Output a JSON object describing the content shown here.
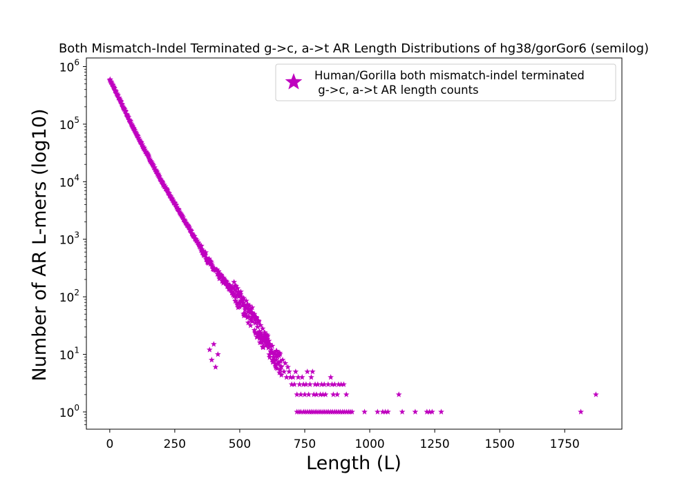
{
  "chart_data": {
    "type": "scatter",
    "title": "Both Mismatch-Indel Terminated g->c, a->t AR Length Distributions of hg38/gorGor6 (semilog)",
    "xlabel": "Length (L)",
    "ylabel": "Number of AR L-mers (log10)",
    "xlim": [
      -90,
      1970
    ],
    "ylim_log10": [
      -0.3,
      6.15
    ],
    "y_scale": "log",
    "xticks": [
      0,
      250,
      500,
      750,
      1000,
      1250,
      1500,
      1750
    ],
    "xtick_labels": [
      "0",
      "250",
      "500",
      "750",
      "1000",
      "1250",
      "1500",
      "1750"
    ],
    "yticks": [
      1,
      10,
      100,
      1000,
      10000,
      100000,
      1000000
    ],
    "ytick_labels": [
      {
        "base": "10",
        "exp": "0"
      },
      {
        "base": "10",
        "exp": "1"
      },
      {
        "base": "10",
        "exp": "2"
      },
      {
        "base": "10",
        "exp": "3"
      },
      {
        "base": "10",
        "exp": "4"
      },
      {
        "base": "10",
        "exp": "5"
      },
      {
        "base": "10",
        "exp": "6"
      }
    ],
    "legend_position": "top-right",
    "grid": false,
    "series": [
      {
        "name": "Human/Gorilla both mismatch-indel terminated\n g->c, a->t AR length counts",
        "color": "#bf00bf",
        "marker": "star",
        "trend": {
          "description": "dense near-linear decay on semilog axes",
          "points": [
            [
              0,
              600000
            ],
            [
              100,
              70000
            ],
            [
              200,
              10000
            ],
            [
              300,
              1700
            ],
            [
              400,
              300
            ],
            [
              500,
              90
            ],
            [
              600,
              16
            ],
            [
              700,
              3.5
            ],
            [
              800,
              1.2
            ]
          ]
        },
        "points": [
          [
            465,
            150
          ],
          [
            470,
            120
          ],
          [
            478,
            180
          ],
          [
            485,
            100
          ],
          [
            492,
            140
          ],
          [
            498,
            80
          ],
          [
            503,
            110
          ],
          [
            510,
            70
          ],
          [
            515,
            95
          ],
          [
            520,
            60
          ],
          [
            525,
            85
          ],
          [
            532,
            55
          ],
          [
            538,
            70
          ],
          [
            542,
            40
          ],
          [
            548,
            65
          ],
          [
            552,
            45
          ],
          [
            556,
            50
          ],
          [
            560,
            35
          ],
          [
            564,
            42
          ],
          [
            568,
            30
          ],
          [
            572,
            38
          ],
          [
            576,
            25
          ],
          [
            580,
            32
          ],
          [
            584,
            22
          ],
          [
            588,
            28
          ],
          [
            592,
            18
          ],
          [
            596,
            24
          ],
          [
            600,
            16
          ],
          [
            605,
            20
          ],
          [
            610,
            13
          ],
          [
            615,
            15
          ],
          [
            620,
            11
          ],
          [
            625,
            14
          ],
          [
            630,
            9
          ],
          [
            635,
            10
          ],
          [
            640,
            8
          ],
          [
            645,
            9
          ],
          [
            650,
            7
          ],
          [
            655,
            10
          ],
          [
            660,
            6
          ],
          [
            665,
            8
          ],
          [
            670,
            5
          ],
          [
            675,
            7
          ],
          [
            680,
            4
          ],
          [
            685,
            6
          ],
          [
            690,
            5
          ],
          [
            695,
            4
          ],
          [
            700,
            3
          ],
          [
            705,
            4
          ],
          [
            710,
            3
          ],
          [
            715,
            5
          ],
          [
            720,
            2
          ],
          [
            725,
            4
          ],
          [
            730,
            3
          ],
          [
            735,
            2
          ],
          [
            740,
            4
          ],
          [
            745,
            3
          ],
          [
            750,
            2
          ],
          [
            755,
            3
          ],
          [
            760,
            5
          ],
          [
            765,
            2
          ],
          [
            770,
            3
          ],
          [
            775,
            4
          ],
          [
            780,
            5
          ],
          [
            785,
            2
          ],
          [
            790,
            3
          ],
          [
            795,
            2
          ],
          [
            800,
            3
          ],
          [
            810,
            2
          ],
          [
            815,
            3
          ],
          [
            820,
            2
          ],
          [
            825,
            3
          ],
          [
            830,
            2
          ],
          [
            840,
            3
          ],
          [
            850,
            4
          ],
          [
            855,
            3
          ],
          [
            860,
            2
          ],
          [
            865,
            3
          ],
          [
            875,
            2
          ],
          [
            880,
            3
          ],
          [
            890,
            3
          ],
          [
            900,
            3
          ],
          [
            910,
            2
          ],
          [
            1112,
            2
          ],
          [
            1870,
            2
          ],
          [
            384,
            12
          ],
          [
            392,
            8
          ],
          [
            400,
            15
          ],
          [
            407,
            6
          ],
          [
            416,
            10
          ],
          [
            720,
            1
          ],
          [
            728,
            1
          ],
          [
            735,
            1
          ],
          [
            745,
            1
          ],
          [
            752,
            1
          ],
          [
            760,
            1
          ],
          [
            768,
            1
          ],
          [
            775,
            1
          ],
          [
            782,
            1
          ],
          [
            790,
            1
          ],
          [
            797,
            1
          ],
          [
            805,
            1
          ],
          [
            812,
            1
          ],
          [
            820,
            1
          ],
          [
            827,
            1
          ],
          [
            835,
            1
          ],
          [
            842,
            1
          ],
          [
            850,
            1
          ],
          [
            857,
            1
          ],
          [
            865,
            1
          ],
          [
            872,
            1
          ],
          [
            880,
            1
          ],
          [
            887,
            1
          ],
          [
            895,
            1
          ],
          [
            902,
            1
          ],
          [
            910,
            1
          ],
          [
            918,
            1
          ],
          [
            925,
            1
          ],
          [
            932,
            1
          ],
          [
            980,
            1
          ],
          [
            1030,
            1
          ],
          [
            1050,
            1
          ],
          [
            1060,
            1
          ],
          [
            1070,
            1
          ],
          [
            1125,
            1
          ],
          [
            1175,
            1
          ],
          [
            1220,
            1
          ],
          [
            1230,
            1
          ],
          [
            1240,
            1
          ],
          [
            1275,
            1
          ],
          [
            1812,
            1
          ]
        ]
      }
    ]
  }
}
